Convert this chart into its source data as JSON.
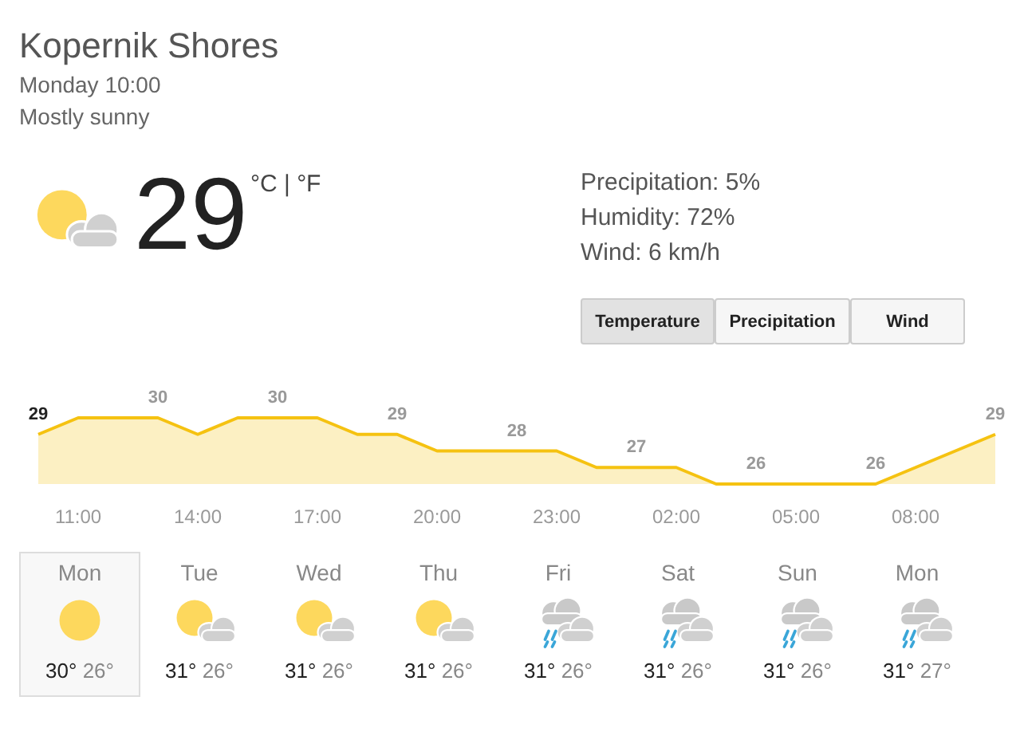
{
  "chart_data": {
    "type": "area",
    "title": "Kopernik Shores",
    "subtitle": "Monday 10:00",
    "annotations": [
      "Mostly sunny",
      "29",
      "°C | °F",
      "Precipitation: 5%",
      "Humidity: 72%",
      "Wind: 6 km/h",
      "Temperature",
      "Precipitation",
      "Wind",
      "Mon",
      "30°",
      "26°",
      "Tue",
      "31°",
      "26°",
      "Wed",
      "31°",
      "26°",
      "Thu",
      "31°",
      "26°",
      "Fri",
      "31°",
      "26°",
      "Sat",
      "31°",
      "26°",
      "Sun",
      "31°",
      "26°",
      "Mon",
      "31°",
      "27°"
    ],
    "categories": [
      null,
      "11:00",
      null,
      null,
      "14:00",
      null,
      null,
      "17:00",
      null,
      null,
      "20:00",
      null,
      null,
      "23:00",
      null,
      null,
      "02:00",
      null,
      null,
      "05:00",
      null,
      null,
      "08:00",
      null,
      null
    ],
    "series": [
      {
        "color": "#f5c211",
        "values": [
          29,
          30,
          30,
          30,
          29,
          30,
          30,
          30,
          29,
          29,
          28,
          28,
          28,
          28,
          27,
          27,
          27,
          26,
          26,
          26,
          26,
          26,
          27,
          28,
          29
        ],
        "value_labels": [
          "29",
          null,
          null,
          "30",
          null,
          null,
          "30",
          null,
          null,
          "29",
          null,
          null,
          "28",
          null,
          null,
          "27",
          null,
          null,
          "26",
          null,
          null,
          "26",
          null,
          null,
          "29"
        ]
      }
    ],
    "grid": false,
    "legend": false,
    "marker": "none"
  }
}
